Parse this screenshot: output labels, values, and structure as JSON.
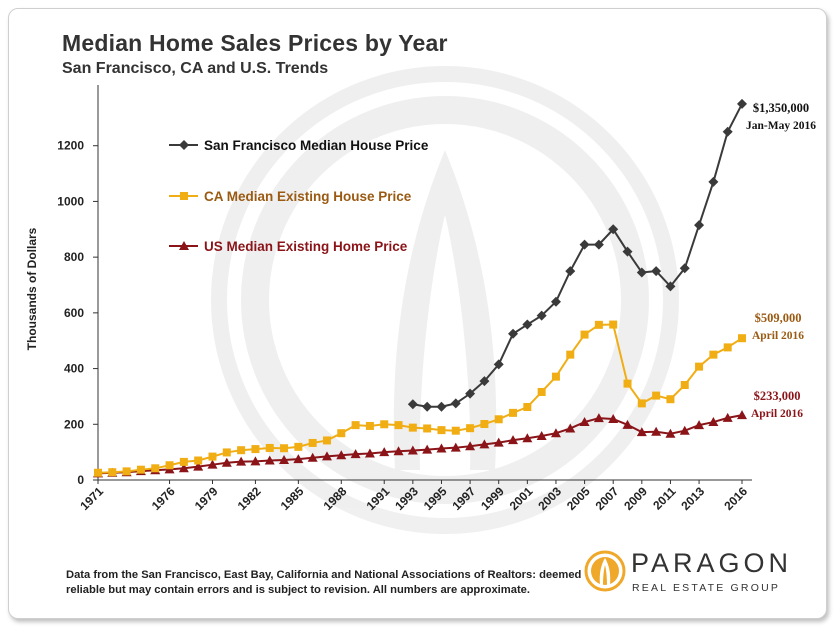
{
  "header": {
    "title": "Median Home Sales Prices by Year",
    "subtitle": "San Francisco, CA and U.S. Trends"
  },
  "footnote": "Data from the San Francisco, East Bay, California and National Associations of Realtors:  deemed reliable but may contain errors and is subject to revision.  All numbers are approximate.",
  "logo": {
    "name": "PARAGON",
    "tagline": "REAL ESTATE GROUP",
    "accent_color": "#f0a82b"
  },
  "chart_data": {
    "type": "line",
    "ylabel": "Thousands of Dollars",
    "xlabel": "",
    "ylim": [
      0,
      1400
    ],
    "yticks": [
      0,
      200,
      400,
      600,
      800,
      1000,
      1200
    ],
    "xlim": [
      1971,
      2016
    ],
    "x_tick_labels": [
      1971,
      1976,
      1979,
      1982,
      1985,
      1988,
      1991,
      1993,
      1995,
      1997,
      1999,
      2001,
      2003,
      2005,
      2007,
      2009,
      2011,
      2013,
      2016
    ],
    "grid": "horizontal",
    "legend_position": "upper-left",
    "series": [
      {
        "name": "San Francisco Median House Price",
        "color": "#3a3a3a",
        "marker": "diamond",
        "x": [
          1993,
          1994,
          1995,
          1996,
          1997,
          1998,
          1999,
          2000,
          2001,
          2002,
          2003,
          2004,
          2005,
          2006,
          2007,
          2008,
          2009,
          2010,
          2011,
          2012,
          2013,
          2014,
          2015,
          2016
        ],
        "values": [
          272,
          263,
          263,
          275,
          310,
          355,
          415,
          525,
          558,
          590,
          640,
          750,
          845,
          845,
          900,
          820,
          745,
          750,
          695,
          760,
          915,
          1070,
          1250,
          1350
        ]
      },
      {
        "name": "CA Median Existing House Price",
        "color": "#f0ae14",
        "marker": "square",
        "x": [
          1971,
          1972,
          1973,
          1974,
          1975,
          1976,
          1977,
          1978,
          1979,
          1980,
          1981,
          1982,
          1983,
          1984,
          1985,
          1986,
          1987,
          1988,
          1989,
          1990,
          1991,
          1992,
          1993,
          1994,
          1995,
          1996,
          1997,
          1998,
          1999,
          2000,
          2001,
          2002,
          2003,
          2004,
          2005,
          2006,
          2007,
          2008,
          2009,
          2010,
          2011,
          2012,
          2013,
          2014,
          2015,
          2016
        ],
        "values": [
          26,
          28,
          31,
          37,
          42,
          53,
          65,
          70,
          84,
          99,
          107,
          111,
          115,
          114,
          119,
          133,
          142,
          168,
          197,
          194,
          200,
          197,
          188,
          185,
          179,
          177,
          186,
          201,
          218,
          241,
          262,
          316,
          371,
          450,
          522,
          557,
          558,
          346,
          275,
          303,
          290,
          341,
          407,
          450,
          476,
          509
        ]
      },
      {
        "name": "US Median Existing Home Price",
        "color": "#8a1418",
        "marker": "triangle",
        "x": [
          1971,
          1972,
          1973,
          1974,
          1975,
          1976,
          1977,
          1978,
          1979,
          1980,
          1981,
          1982,
          1983,
          1984,
          1985,
          1986,
          1987,
          1988,
          1989,
          1990,
          1991,
          1992,
          1993,
          1994,
          1995,
          1996,
          1997,
          1998,
          1999,
          2000,
          2001,
          2002,
          2003,
          2004,
          2005,
          2006,
          2007,
          2008,
          2009,
          2010,
          2011,
          2012,
          2013,
          2014,
          2015,
          2016
        ],
        "values": [
          24,
          26,
          28,
          32,
          35,
          38,
          42,
          48,
          55,
          62,
          66,
          67,
          70,
          72,
          75,
          80,
          85,
          89,
          93,
          95,
          100,
          103,
          106,
          109,
          113,
          116,
          121,
          128,
          134,
          143,
          150,
          158,
          168,
          185,
          208,
          222,
          219,
          198,
          172,
          173,
          166,
          177,
          197,
          208,
          223,
          233
        ]
      }
    ],
    "annotations": [
      {
        "series": 0,
        "lines": [
          "$1,350,000",
          "Jan-May  2016"
        ],
        "color": "#111111"
      },
      {
        "series": 1,
        "lines": [
          "$509,000",
          "April 2016"
        ],
        "color": "#9a5a12"
      },
      {
        "series": 2,
        "lines": [
          "$233,000",
          "April 2016"
        ],
        "color": "#8a1418"
      }
    ]
  }
}
